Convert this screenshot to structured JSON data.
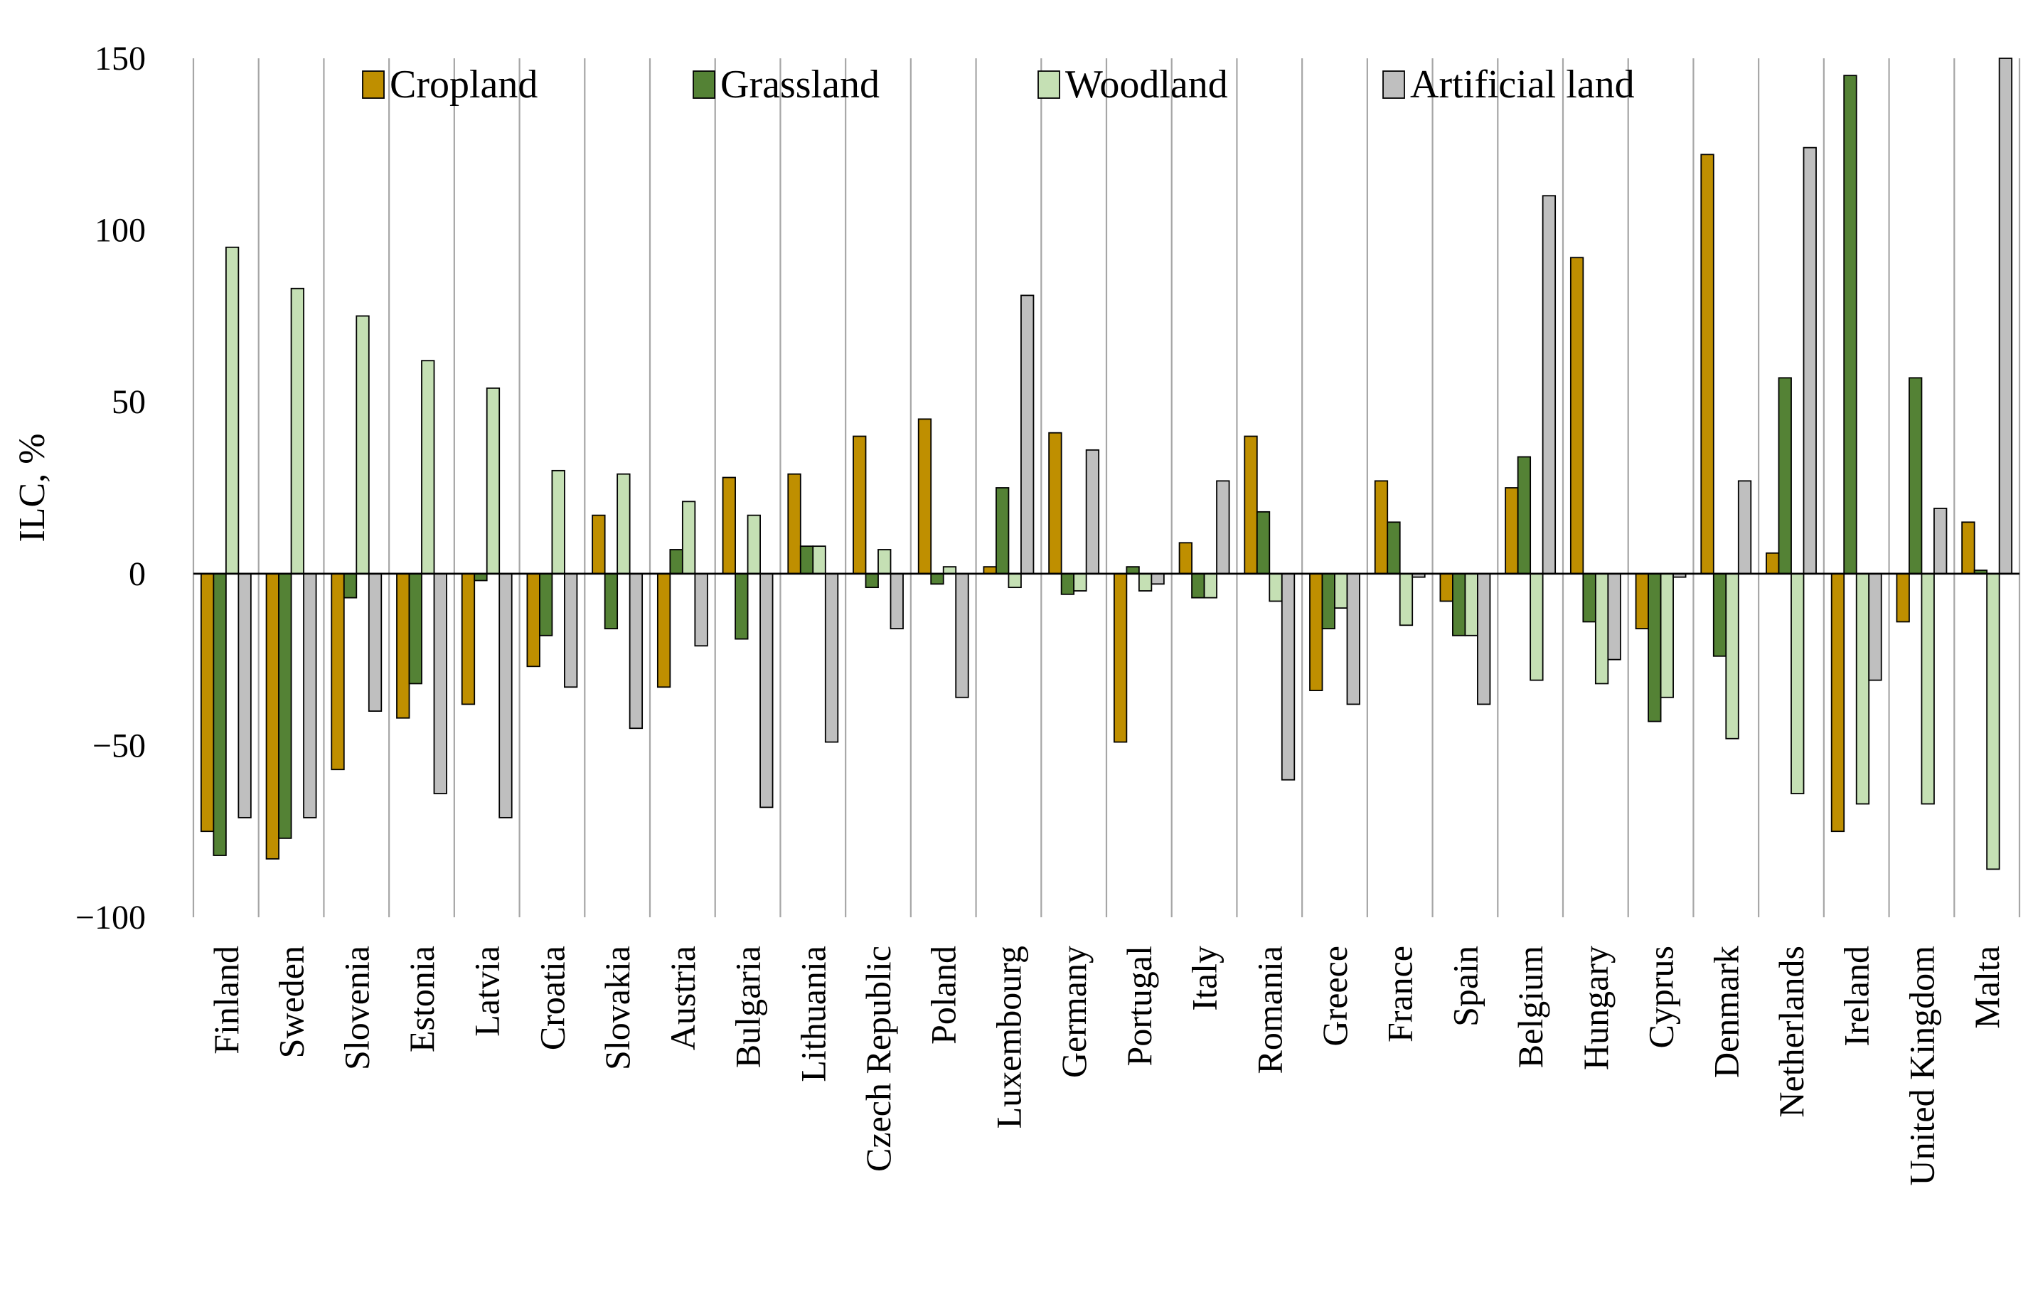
{
  "chart_data": {
    "type": "bar",
    "title": "",
    "xlabel": "",
    "ylabel": "ILC, %",
    "ylim": [
      -100,
      150
    ],
    "yticks": [
      -100,
      -50,
      0,
      50,
      100,
      150
    ],
    "ytick_labels": [
      "−100",
      "−50",
      "0",
      "50",
      "100",
      "150"
    ],
    "grid": "vertical",
    "legend_position": "top",
    "categories": [
      "Finland",
      "Sweden",
      "Slovenia",
      "Estonia",
      "Latvia",
      "Croatia",
      "Slovakia",
      "Austria",
      "Bulgaria",
      "Lithuania",
      "Czech Republic",
      "Poland",
      "Luxembourg",
      "Germany",
      "Portugal",
      "Italy",
      "Romania",
      "Greece",
      "France",
      "Spain",
      "Belgium",
      "Hungary",
      "Cyprus",
      "Denmark",
      "Netherlands",
      "Ireland",
      "United Kingdom",
      "Malta"
    ],
    "series": [
      {
        "name": "Cropland",
        "color": "#bf8f00",
        "values": [
          -75,
          -83,
          -57,
          -42,
          -38,
          -27,
          17,
          -33,
          28,
          29,
          40,
          45,
          2,
          41,
          -49,
          9,
          40,
          -34,
          27,
          -8,
          25,
          92,
          -16,
          122,
          6,
          -75,
          -14,
          15
        ]
      },
      {
        "name": "Grassland",
        "color": "#548235",
        "values": [
          -82,
          -77,
          -7,
          -32,
          -2,
          -18,
          -16,
          7,
          -19,
          8,
          -4,
          -3,
          25,
          -6,
          2,
          -7,
          18,
          -16,
          15,
          -18,
          34,
          -14,
          -43,
          -24,
          57,
          145,
          57,
          1
        ]
      },
      {
        "name": "Woodland",
        "color": "#c5e0b4",
        "values": [
          95,
          83,
          75,
          62,
          54,
          30,
          29,
          21,
          17,
          8,
          7,
          2,
          -4,
          -5,
          -5,
          -7,
          -8,
          -10,
          -15,
          -18,
          -31,
          -32,
          -36,
          -48,
          -64,
          -67,
          -67,
          -86
        ]
      },
      {
        "name": "Artificial land",
        "color": "#bfbfbf",
        "values": [
          -71,
          -71,
          -40,
          -64,
          -71,
          -33,
          -45,
          -21,
          -68,
          -49,
          -16,
          -36,
          81,
          36,
          -3,
          27,
          -60,
          -38,
          -1,
          -38,
          110,
          -25,
          -1,
          27,
          124,
          -31,
          19,
          150
        ]
      }
    ]
  }
}
